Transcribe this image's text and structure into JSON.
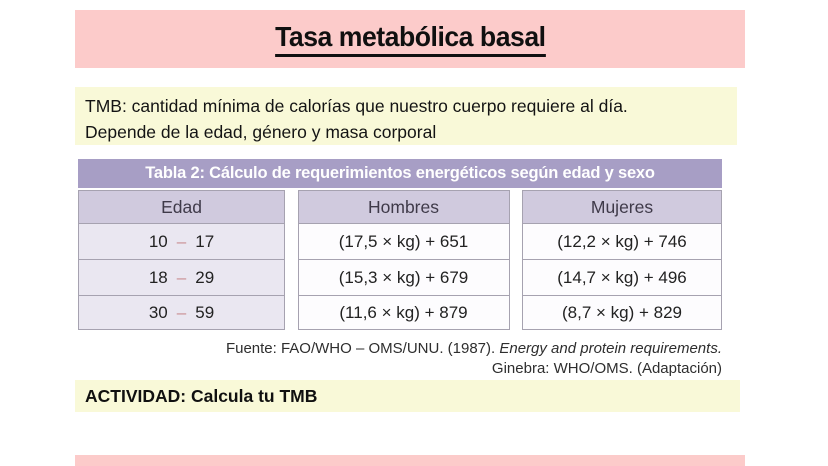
{
  "slide": {
    "title": "Tasa metabólica basal",
    "intro": {
      "line1": "TMB: cantidad mínima de calorías que nuestro cuerpo requiere al día.",
      "line2": "Depende de la edad, género y masa corporal"
    },
    "activity_label": "ACTIVIDAD: Calcula tu TMB"
  },
  "table": {
    "caption": "Tabla 2: Cálculo de requerimientos energéticos según edad y sexo",
    "headers": [
      "Edad",
      "Hombres",
      "Mujeres"
    ],
    "age_separator": "–",
    "rows": [
      {
        "age_from": "10",
        "age_to": "17",
        "hombres": "(17,5 × kg) + 651",
        "mujeres": "(12,2 × kg) + 746"
      },
      {
        "age_from": "18",
        "age_to": "29",
        "hombres": "(15,3 × kg) + 679",
        "mujeres": "(14,7 × kg) + 496"
      },
      {
        "age_from": "30",
        "age_to": "59",
        "hombres": "(11,6 × kg) + 879",
        "mujeres": "(8,7 × kg) + 829"
      }
    ]
  },
  "source": {
    "label": "Fuente: FAO/WHO – OMS/UNU. (1987).",
    "work_italic": "Energy and protein requirements.",
    "line2": "Ginebra: WHO/OMS. (Adaptación)"
  },
  "colors": {
    "accent_pink": "#fccbca",
    "note_yellow": "#f9f9d8",
    "caption_purple": "#a79ec5",
    "header_lavender": "#d0cade",
    "age_cell_lavender": "#eae7f1",
    "formula_cell": "#fdfcfe",
    "table_border": "#a6a2b0",
    "text_dark": "#1d1d1f",
    "age_dash": "#c98f92"
  }
}
